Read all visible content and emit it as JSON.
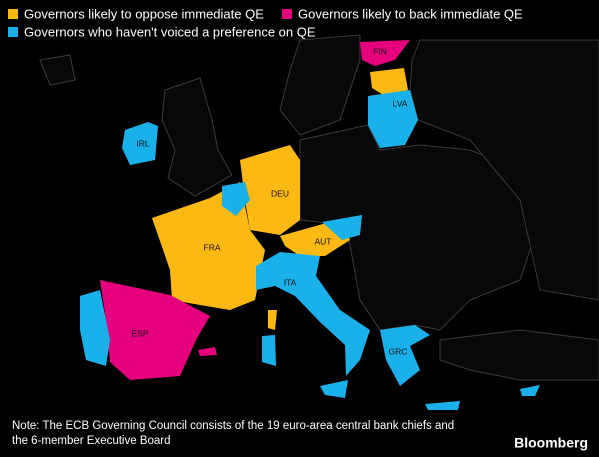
{
  "legend": [
    "Governors likely to oppose immediate QE",
    "Governors likely to back immediate QE",
    "Governors who haven't voiced a preference on QE"
  ],
  "countries": [
    "FIN",
    "LVA",
    "IRL",
    "DEU",
    "FRA",
    "AUT",
    "ITA",
    "ESP",
    "GRC"
  ],
  "note": [
    "Note: The ECB Governing Council consists of the 19 euro-area central bank chiefs and",
    "the 6-member Executive Board"
  ],
  "source": "Bloomberg"
}
